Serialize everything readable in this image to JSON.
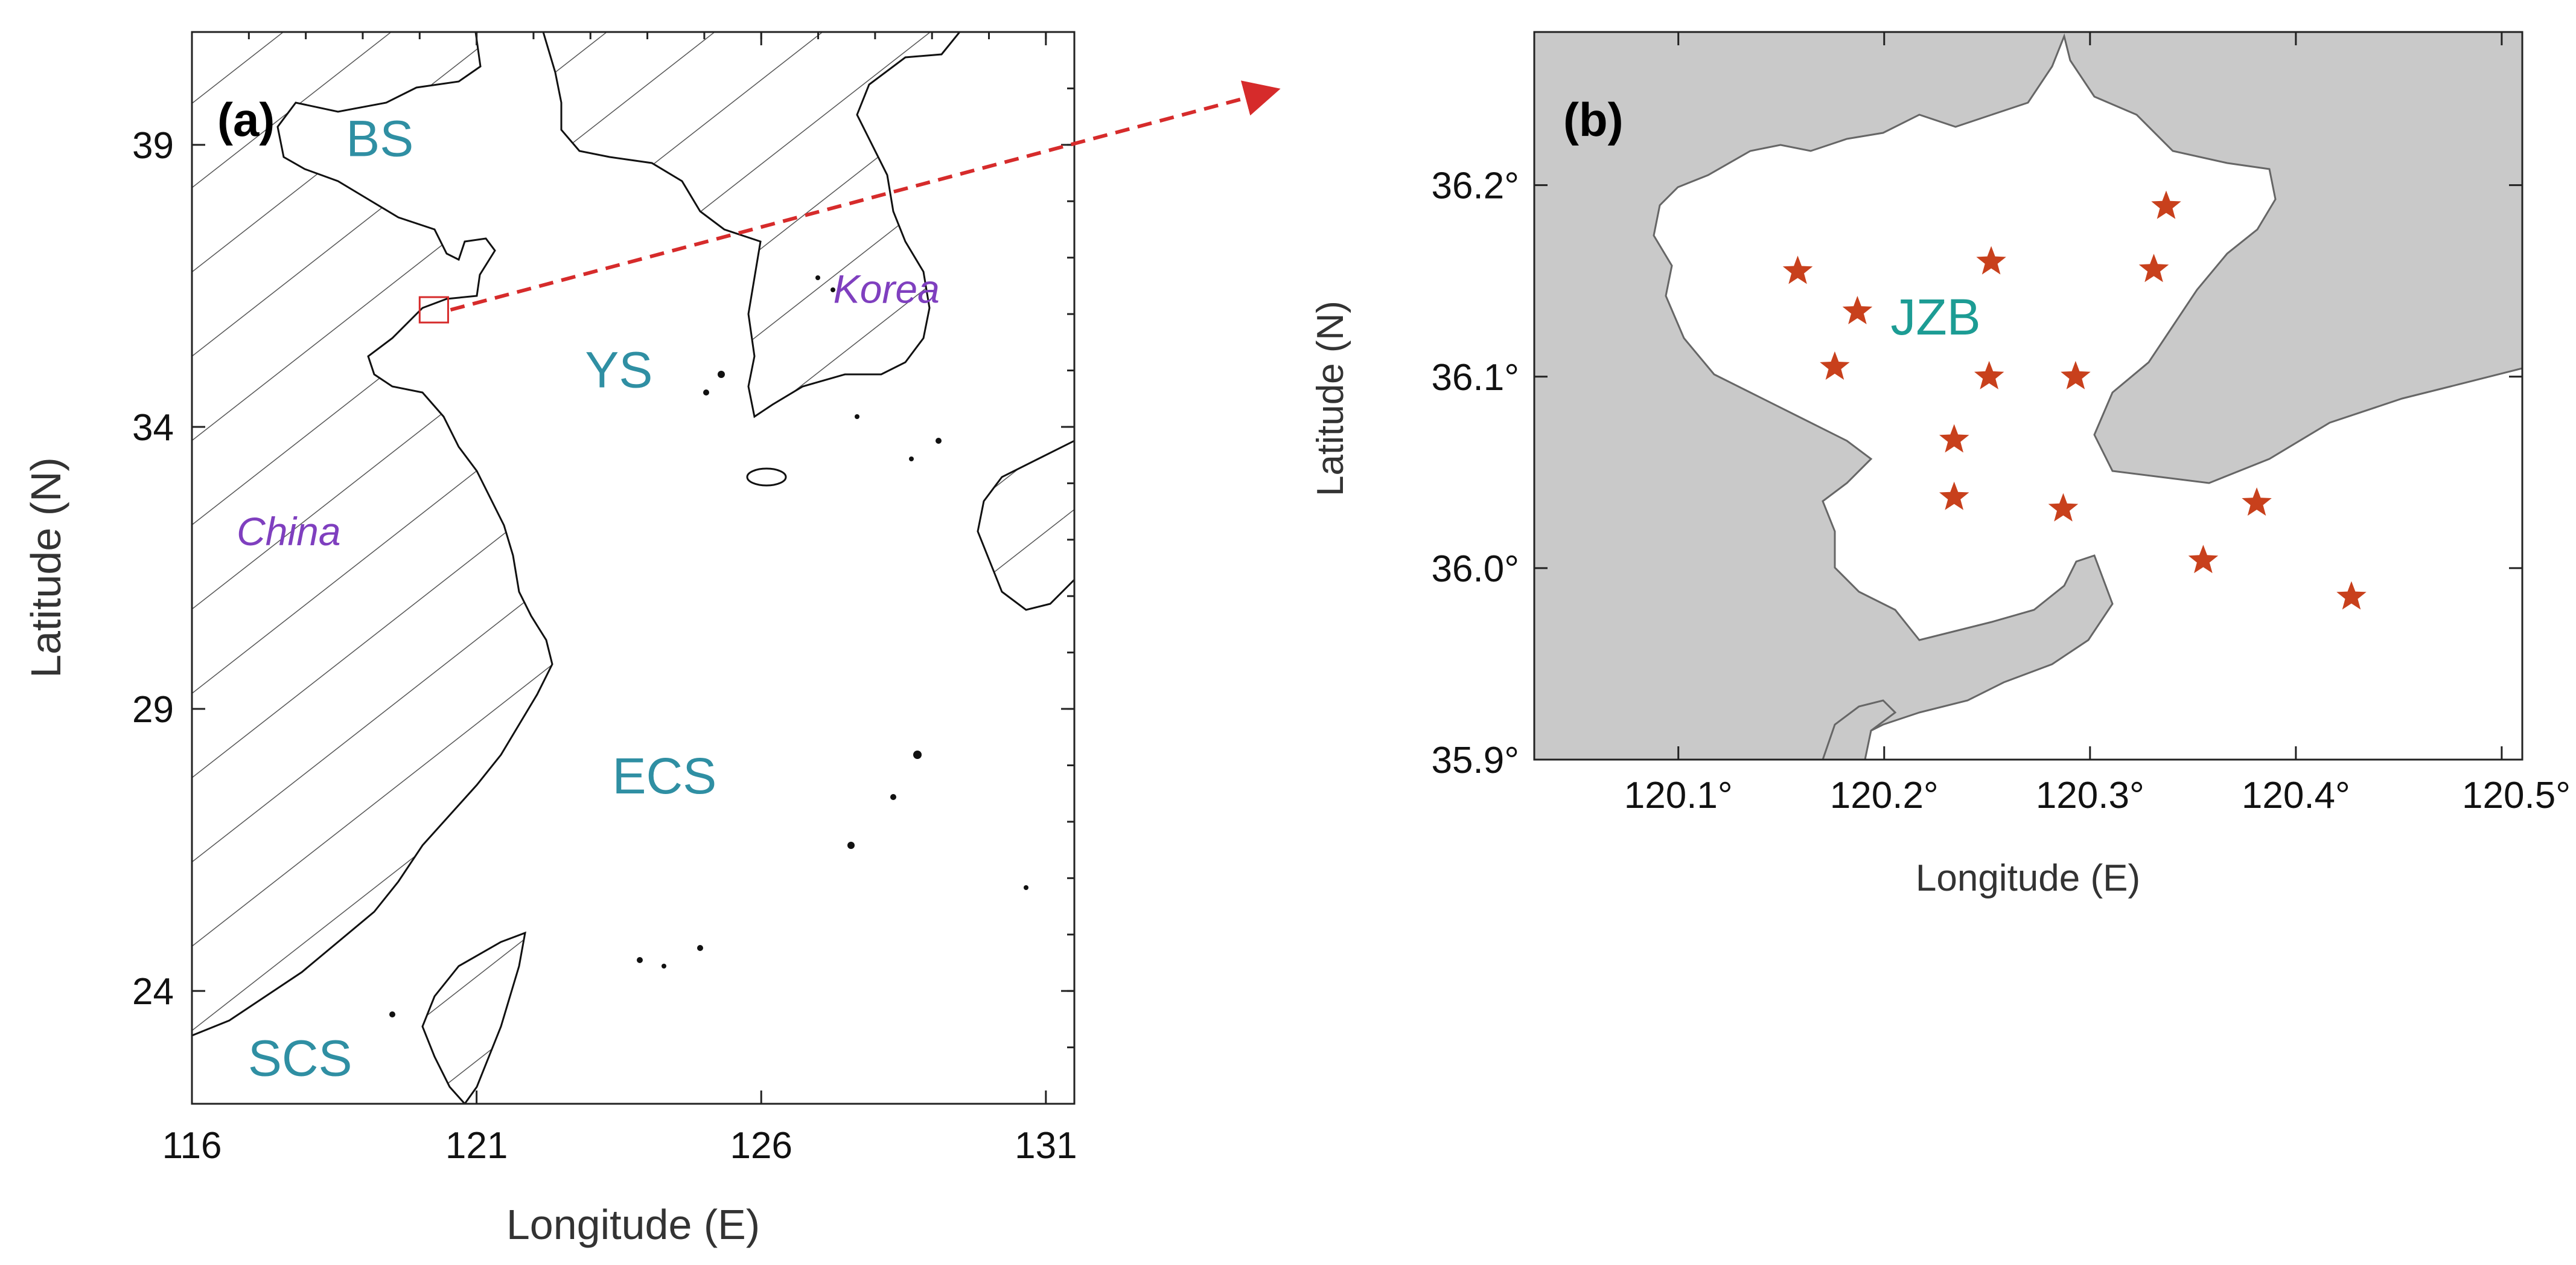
{
  "panel_a": {
    "tag": "(a)",
    "xlabel": "Longitude (E)",
    "ylabel": "Latitude (N)",
    "xticks": [
      "116",
      "121",
      "126",
      "131"
    ],
    "yticks": [
      "39",
      "34",
      "29",
      "24"
    ],
    "xlim": [
      116,
      131.5
    ],
    "ylim": [
      22,
      41
    ],
    "regions": [
      {
        "text": "BS",
        "lon": 119.3,
        "lat": 38.8,
        "style": "sea"
      },
      {
        "text": "YS",
        "lon": 123.5,
        "lat": 34.7,
        "style": "sea"
      },
      {
        "text": "ECS",
        "lon": 124.3,
        "lat": 27.5,
        "style": "sea"
      },
      {
        "text": "SCS",
        "lon": 117.9,
        "lat": 22.5,
        "style": "sea"
      },
      {
        "text": "Korea",
        "lon": 128.2,
        "lat": 36.2,
        "style": "country"
      },
      {
        "text": "China",
        "lon": 117.7,
        "lat": 31.9,
        "style": "country"
      }
    ],
    "study_box": {
      "lon": [
        120.0,
        120.5
      ],
      "lat": [
        35.85,
        36.3
      ]
    }
  },
  "panel_b": {
    "tag": "(b)",
    "xlabel": "Longitude (E)",
    "ylabel": "Latitude (N)",
    "xticks": [
      "120.1°",
      "120.2°",
      "120.3°",
      "120.4°",
      "120.5°"
    ],
    "yticks": [
      "36.2°",
      "36.1°",
      "36.0°",
      "35.9°"
    ],
    "xlim": [
      120.03,
      120.51
    ],
    "ylim": [
      35.9,
      36.28
    ],
    "bay_label": {
      "text": "JZB",
      "lon": 120.225,
      "lat": 36.122
    },
    "stations": [
      {
        "lon": 120.158,
        "lat": 36.155
      },
      {
        "lon": 120.187,
        "lat": 36.134
      },
      {
        "lon": 120.176,
        "lat": 36.105
      },
      {
        "lon": 120.252,
        "lat": 36.16
      },
      {
        "lon": 120.251,
        "lat": 36.1
      },
      {
        "lon": 120.293,
        "lat": 36.1
      },
      {
        "lon": 120.337,
        "lat": 36.189
      },
      {
        "lon": 120.331,
        "lat": 36.156
      },
      {
        "lon": 120.234,
        "lat": 36.067
      },
      {
        "lon": 120.234,
        "lat": 36.037
      },
      {
        "lon": 120.287,
        "lat": 36.031
      },
      {
        "lon": 120.381,
        "lat": 36.034
      },
      {
        "lon": 120.355,
        "lat": 36.004
      },
      {
        "lon": 120.427,
        "lat": 35.985
      }
    ]
  },
  "colors": {
    "sea_label": "#2f8fa3",
    "bay_label": "#1c9c94",
    "country_label": "#7f3fbf",
    "star": "#c8401c",
    "arrow": "#d62b2b",
    "land": "#c9c9c9"
  }
}
